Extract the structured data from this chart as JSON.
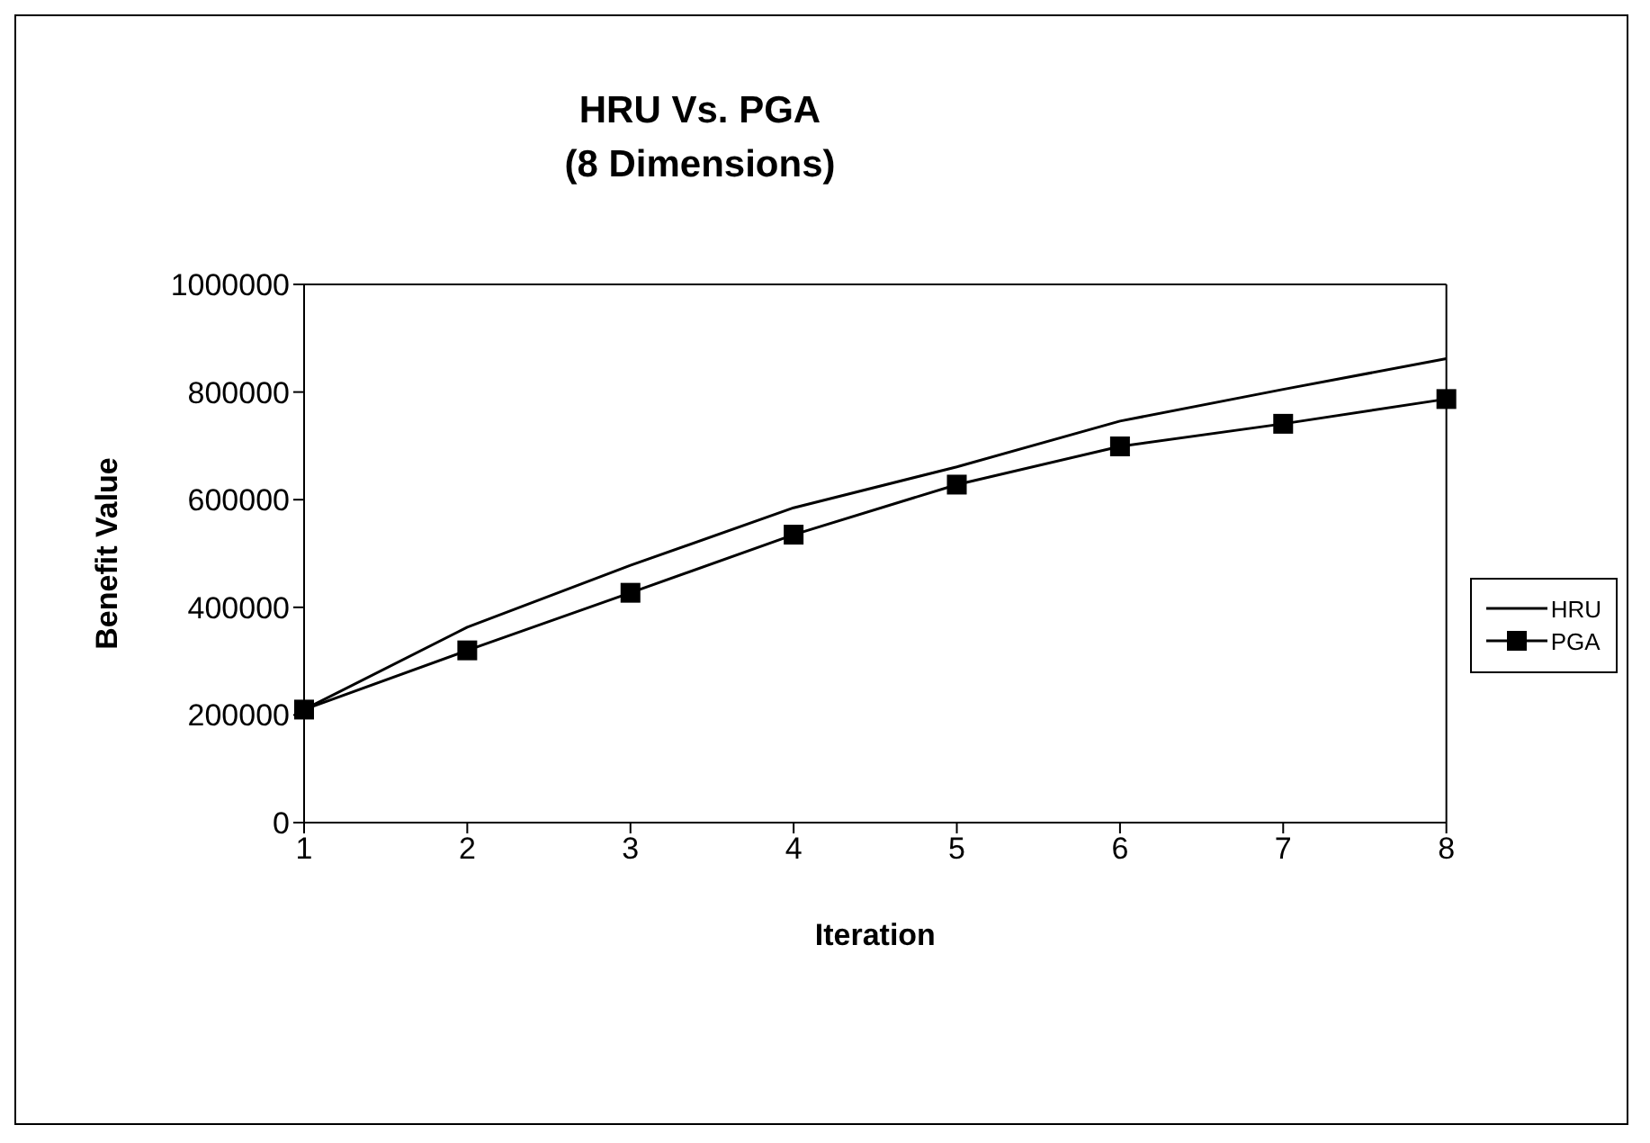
{
  "chart_data": {
    "type": "line",
    "title": "HRU Vs. PGA",
    "subtitle": "(8 Dimensions)",
    "xlabel": "Iteration",
    "ylabel": "Benefit Value",
    "categories": [
      "1",
      "2",
      "3",
      "4",
      "5",
      "6",
      "7",
      "8"
    ],
    "series": [
      {
        "name": "HRU",
        "color": "#000000",
        "marker": "none",
        "values": [
          210000,
          363000,
          478000,
          585000,
          661000,
          746000,
          805000,
          862000
        ]
      },
      {
        "name": "PGA",
        "color": "#000000",
        "marker": "square",
        "values": [
          210000,
          320000,
          427000,
          535000,
          628000,
          699000,
          741000,
          787000
        ]
      }
    ],
    "ylim": [
      0,
      1000000
    ],
    "yticks": [
      0,
      200000,
      400000,
      600000,
      800000,
      1000000
    ],
    "grid": false,
    "legend": "right",
    "line_style": "solid"
  }
}
